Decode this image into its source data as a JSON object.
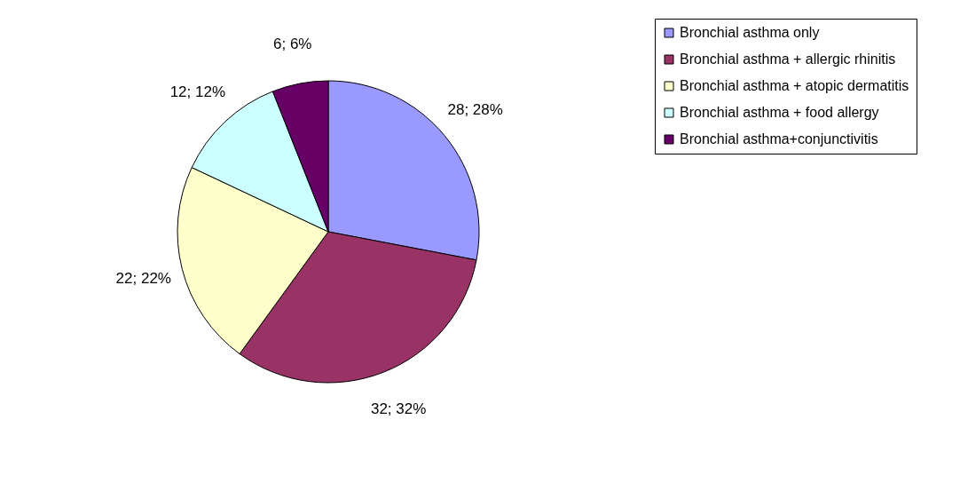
{
  "chart_data": {
    "type": "pie",
    "categories": [
      "Bronchial asthma only",
      "Bronchial asthma + allergic rhinitis",
      "Bronchial asthma + atopic dermatitis",
      "Bronchial asthma + food allergy",
      "Bronchial asthma+conjunctivitis"
    ],
    "values": [
      28,
      32,
      22,
      12,
      6
    ],
    "colors": [
      "#9999ff",
      "#993366",
      "#ffffcc",
      "#ccffff",
      "#660066"
    ],
    "value_labels": [
      "28; 28%",
      "32; 32%",
      "22; 22%",
      "12; 12%",
      "6; 6%"
    ],
    "legend": "right"
  }
}
